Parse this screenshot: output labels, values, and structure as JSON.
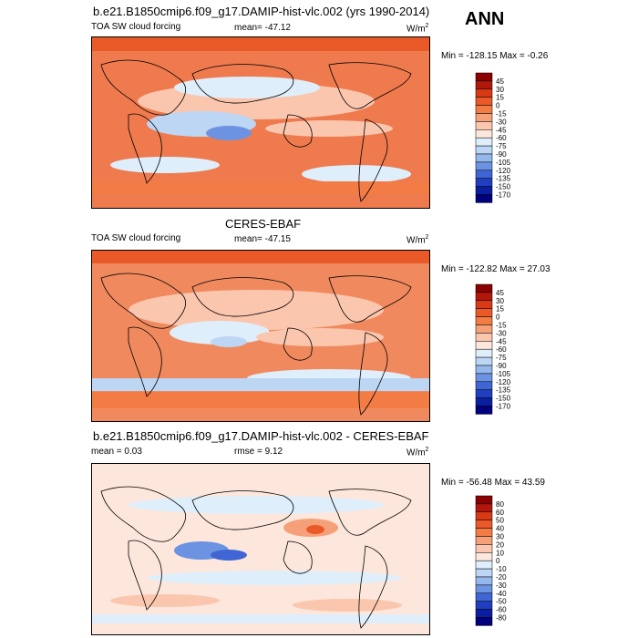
{
  "panel_label": "ANN",
  "panels": [
    {
      "title": "b.e21.B1850cmip6.f09_g17.DAMIP-hist-vlc.002 (yrs 1990-2014)",
      "left_label": "TOA SW cloud forcing",
      "center_label": "mean= -47.12",
      "units": "W/m",
      "units_exp": "2",
      "minmax": "Min = -128.15 Max =  -0.26",
      "colorbar_labels": [
        "45",
        "30",
        "15",
        "0",
        "-15",
        "-30",
        "-45",
        "-60",
        "-75",
        "-90",
        "-105",
        "-120",
        "-135",
        "-150",
        "-170"
      ],
      "colorbar_colors": [
        "#8b0000",
        "#b2170c",
        "#d73a17",
        "#ea5a28",
        "#f37c45",
        "#f6a07a",
        "#fbc6ae",
        "#fde7dc",
        "#dfeefb",
        "#bcd6f4",
        "#94b8ec",
        "#6b93e2",
        "#3f66d4",
        "#1f3fc0",
        "#0a1fa0",
        "#00007f"
      ]
    },
    {
      "title": "CERES-EBAF",
      "left_label": "TOA SW cloud forcing",
      "center_label": "mean= -47.15",
      "units": "W/m",
      "units_exp": "2",
      "minmax": "Min = -122.82 Max =  27.03",
      "colorbar_labels": [
        "45",
        "30",
        "15",
        "0",
        "-15",
        "-30",
        "-45",
        "-60",
        "-75",
        "-90",
        "-105",
        "-120",
        "-135",
        "-150",
        "-170"
      ],
      "colorbar_colors": [
        "#8b0000",
        "#b2170c",
        "#d73a17",
        "#ea5a28",
        "#f37c45",
        "#f6a07a",
        "#fbc6ae",
        "#fde7dc",
        "#dfeefb",
        "#bcd6f4",
        "#94b8ec",
        "#6b93e2",
        "#3f66d4",
        "#1f3fc0",
        "#0a1fa0",
        "#00007f"
      ]
    },
    {
      "title": "b.e21.B1850cmip6.f09_g17.DAMIP-hist-vlc.002 - CERES-EBAF",
      "left_label": "mean =   0.03",
      "center_label": "rmse =   9.12",
      "units": "W/m",
      "units_exp": "2",
      "minmax": "Min = -56.48 Max =  43.59",
      "colorbar_labels": [
        "80",
        "60",
        "50",
        "40",
        "30",
        "20",
        "10",
        "0",
        "-10",
        "-20",
        "-30",
        "-40",
        "-50",
        "-60",
        "-80"
      ],
      "colorbar_colors": [
        "#8b0000",
        "#b2170c",
        "#d73a17",
        "#ea5a28",
        "#f37c45",
        "#f6a07a",
        "#fbc6ae",
        "#fde7dc",
        "#dfeefb",
        "#bcd6f4",
        "#94b8ec",
        "#6b93e2",
        "#3f66d4",
        "#1f3fc0",
        "#0a1fa0",
        "#00007f"
      ]
    }
  ]
}
